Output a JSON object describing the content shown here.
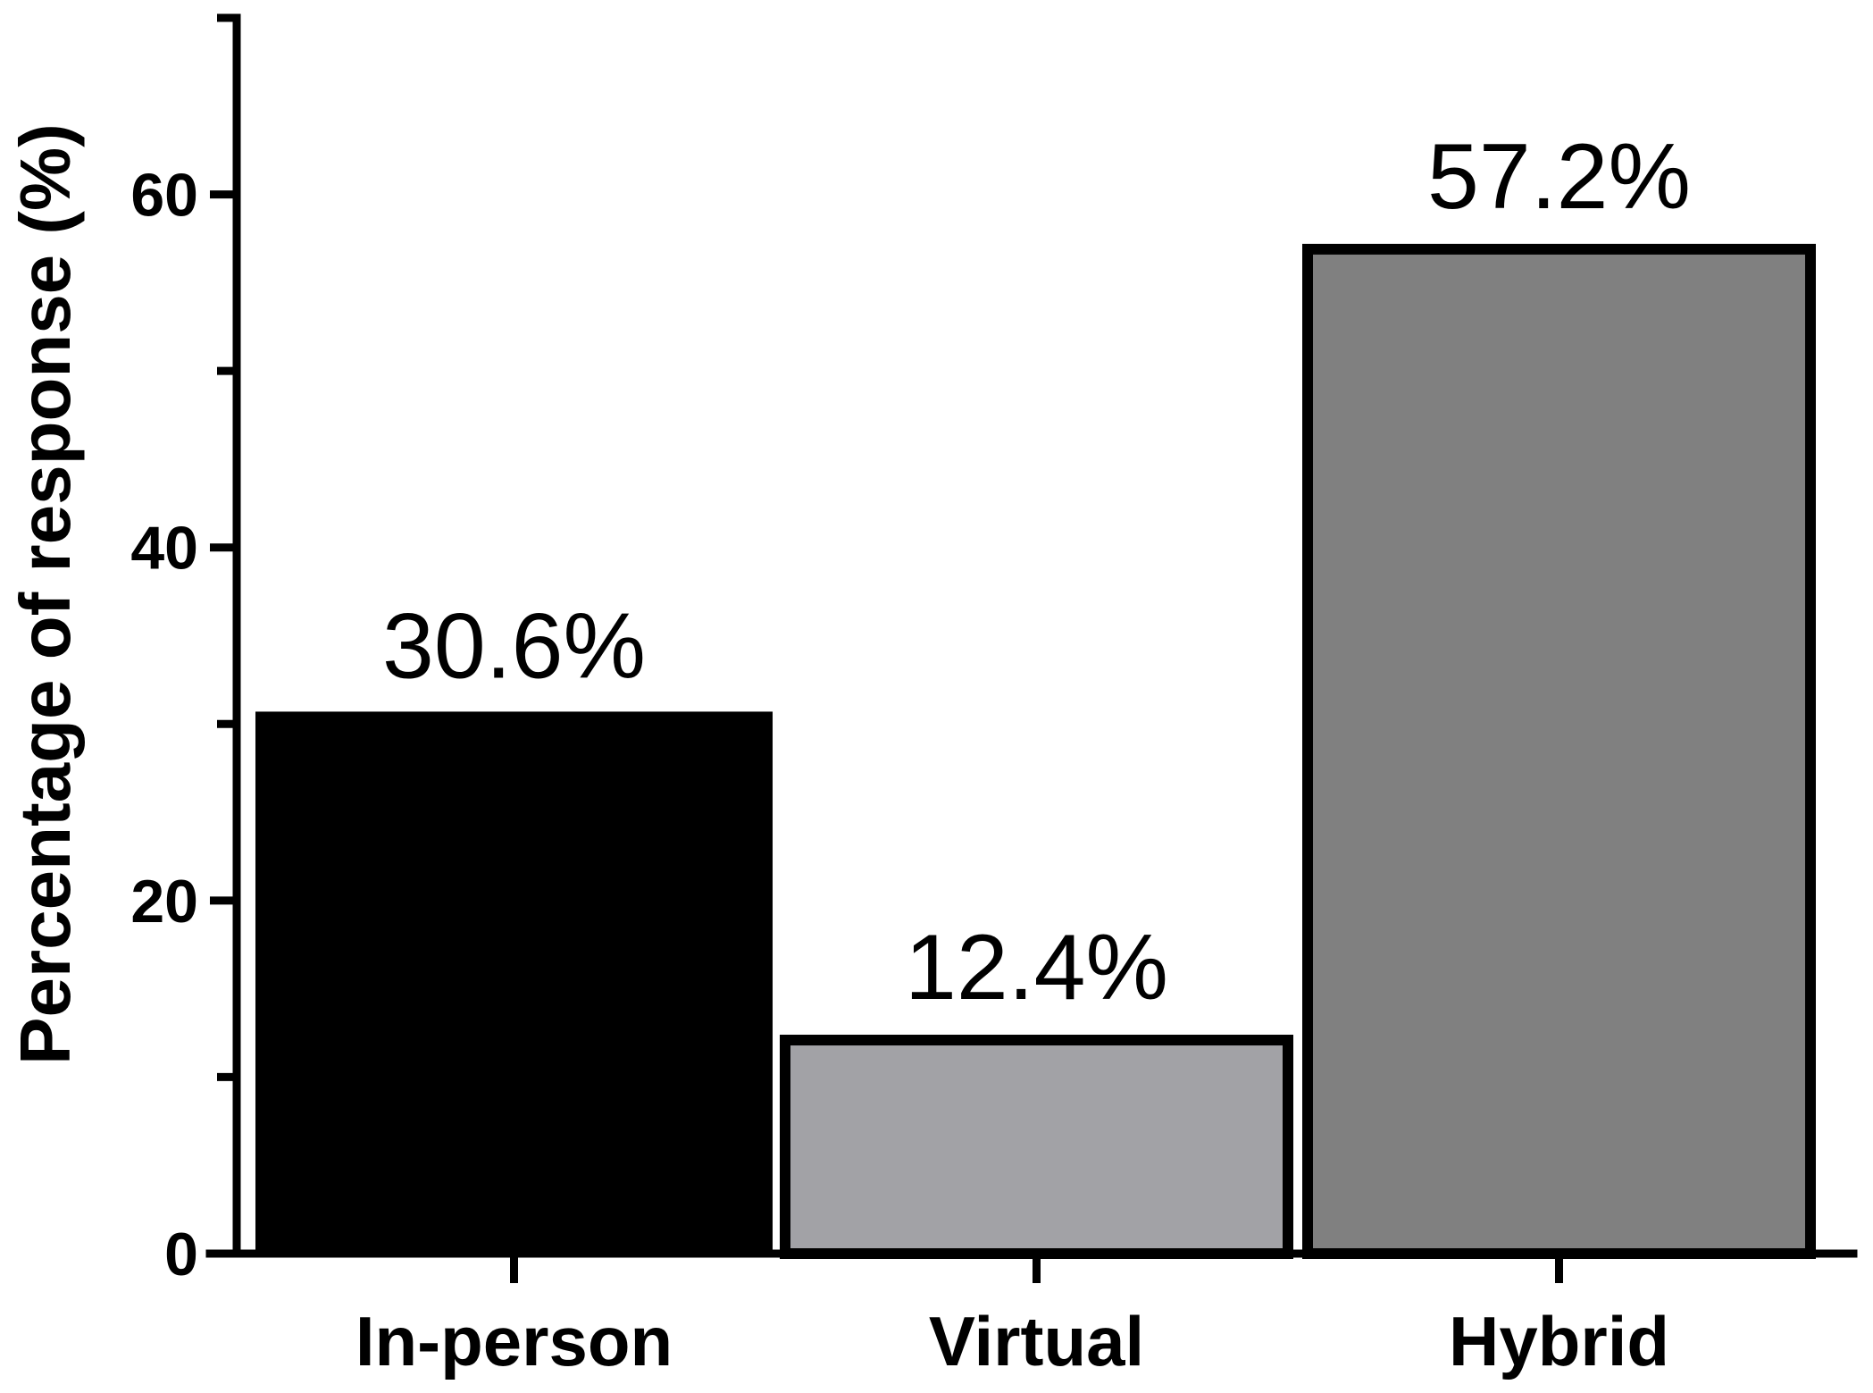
{
  "chart_data": {
    "type": "bar",
    "categories": [
      "In-person",
      "Virtual",
      "Hybrid"
    ],
    "values": [
      30.6,
      12.4,
      57.2
    ],
    "data_labels": [
      "30.6%",
      "12.4%",
      "57.2%"
    ],
    "bar_colors": [
      "#000000",
      "#a2a2a6",
      "#808080"
    ],
    "ylabel": "Percentage of response (%)",
    "ylim": [
      0,
      70
    ],
    "y_major_ticks": [
      0,
      20,
      40,
      60
    ],
    "y_minor_ticks": [
      10,
      30,
      50,
      70
    ],
    "grid": false,
    "legend": "none"
  }
}
